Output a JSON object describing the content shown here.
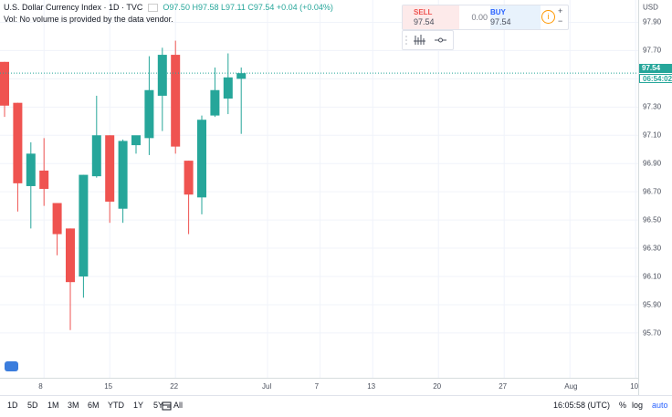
{
  "legend": {
    "symbol": "U.S. Dollar Currency Index · 1D · TVC",
    "ohlc": "O97.50  H97.58  L97.11  C97.54  +0.04 (+0.04%)",
    "volume_note": "Vol: No volume is provided by the data vendor."
  },
  "trade_widget": {
    "sell_label": "SELL",
    "sell_value": "97.54",
    "spread": "0.00",
    "buy_label": "BUY",
    "buy_value": "97.54",
    "info_icon": "info-icon",
    "plus": "+",
    "minus": "−"
  },
  "price_axis": {
    "currency": "USD",
    "last_price": "97.54",
    "countdown": "06:54:02"
  },
  "bottom_bar": {
    "timeframes": [
      "1D",
      "5D",
      "1M",
      "3M",
      "6M",
      "YTD",
      "1Y",
      "5Y",
      "All"
    ],
    "time": "16:05:58 (UTC)",
    "percent": "%",
    "log": "log",
    "auto": "auto"
  },
  "colors": {
    "up": "#26a69a",
    "down": "#ef5350",
    "grid": "#f0f3fa"
  },
  "chart_data": {
    "type": "candlestick",
    "y_ticks": [
      "97.90",
      "97.70",
      "97.50",
      "97.30",
      "97.10",
      "96.90",
      "96.70",
      "96.50",
      "96.30",
      "96.10",
      "95.90",
      "95.70"
    ],
    "ylim": [
      95.57,
      98.0
    ],
    "x_tick_labels": [
      "8",
      "15",
      "22",
      "Jul",
      "7",
      "13",
      "20",
      "27",
      "Aug",
      "10"
    ],
    "x_tick_index": [
      3,
      8,
      13,
      20,
      24,
      28,
      33,
      38,
      43,
      48
    ],
    "candles": [
      {
        "i": 0,
        "o": 97.62,
        "h": 97.62,
        "l": 97.23,
        "c": 97.31
      },
      {
        "i": 1,
        "o": 97.33,
        "h": 97.33,
        "l": 96.56,
        "c": 96.76
      },
      {
        "i": 2,
        "o": 96.74,
        "h": 97.05,
        "l": 96.44,
        "c": 96.97
      },
      {
        "i": 3,
        "o": 96.85,
        "h": 97.08,
        "l": 96.6,
        "c": 96.72
      },
      {
        "i": 4,
        "o": 96.62,
        "h": 96.62,
        "l": 96.25,
        "c": 96.4
      },
      {
        "i": 5,
        "o": 96.44,
        "h": 96.44,
        "l": 95.72,
        "c": 96.06
      },
      {
        "i": 6,
        "o": 96.1,
        "h": 96.82,
        "l": 95.95,
        "c": 96.82
      },
      {
        "i": 7,
        "o": 96.81,
        "h": 97.38,
        "l": 96.8,
        "c": 97.1
      },
      {
        "i": 8,
        "o": 97.1,
        "h": 97.1,
        "l": 96.48,
        "c": 96.63
      },
      {
        "i": 9,
        "o": 96.58,
        "h": 97.07,
        "l": 96.48,
        "c": 97.06
      },
      {
        "i": 10,
        "o": 97.03,
        "h": 97.08,
        "l": 96.97,
        "c": 97.1
      },
      {
        "i": 11,
        "o": 97.08,
        "h": 97.66,
        "l": 96.96,
        "c": 97.42
      },
      {
        "i": 12,
        "o": 97.38,
        "h": 97.72,
        "l": 97.13,
        "c": 97.67
      },
      {
        "i": 13,
        "o": 97.67,
        "h": 97.77,
        "l": 96.97,
        "c": 97.02
      },
      {
        "i": 14,
        "o": 96.92,
        "h": 96.92,
        "l": 96.4,
        "c": 96.68
      },
      {
        "i": 15,
        "o": 96.66,
        "h": 97.24,
        "l": 96.54,
        "c": 97.21
      },
      {
        "i": 16,
        "o": 97.24,
        "h": 97.58,
        "l": 97.23,
        "c": 97.42
      },
      {
        "i": 17,
        "o": 97.36,
        "h": 97.68,
        "l": 97.25,
        "c": 97.51
      },
      {
        "i": 18,
        "o": 97.5,
        "h": 97.58,
        "l": 97.11,
        "c": 97.54
      }
    ]
  }
}
